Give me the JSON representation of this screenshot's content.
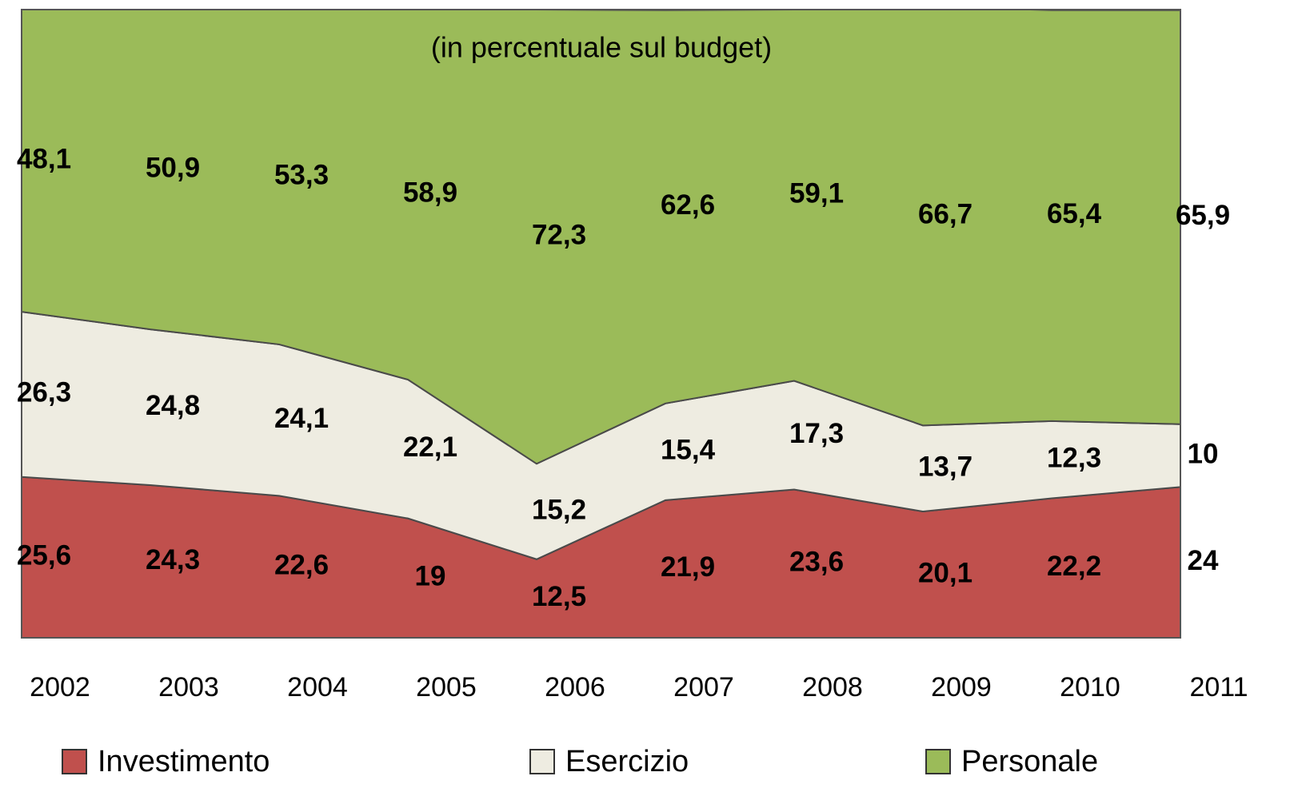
{
  "chart_data": {
    "type": "stacked_area",
    "title": "(in percentuale sul budget)",
    "categories": [
      "2002",
      "2003",
      "2004",
      "2005",
      "2006",
      "2007",
      "2008",
      "2009",
      "2010",
      "2011"
    ],
    "ylim": [
      0,
      100
    ],
    "legend": "bottom",
    "series": [
      {
        "name": "Investimento",
        "color": "#c0504d",
        "values": [
          25.6,
          24.3,
          22.6,
          19,
          12.5,
          21.9,
          23.6,
          20.1,
          22.2,
          24
        ],
        "value_labels": [
          "25,6",
          "24,3",
          "22,6",
          "19",
          "12,5",
          "21,9",
          "23,6",
          "20,1",
          "22,2",
          "24"
        ]
      },
      {
        "name": "Esercizio",
        "color": "#eeece1",
        "values": [
          26.3,
          24.8,
          24.1,
          22.1,
          15.2,
          15.4,
          17.3,
          13.7,
          12.3,
          10
        ],
        "value_labels": [
          "26,3",
          "24,8",
          "24,1",
          "22,1",
          "15,2",
          "15,4",
          "17,3",
          "13,7",
          "12,3",
          "10"
        ]
      },
      {
        "name": "Personale",
        "color": "#9bbb59",
        "values": [
          48.1,
          50.9,
          53.3,
          58.9,
          72.3,
          62.6,
          59.1,
          66.7,
          65.4,
          65.9
        ],
        "value_labels": [
          "48,1",
          "50,9",
          "53,3",
          "58,9",
          "72,3",
          "62,6",
          "59,1",
          "66,7",
          "65,4",
          "65,9"
        ]
      }
    ]
  }
}
